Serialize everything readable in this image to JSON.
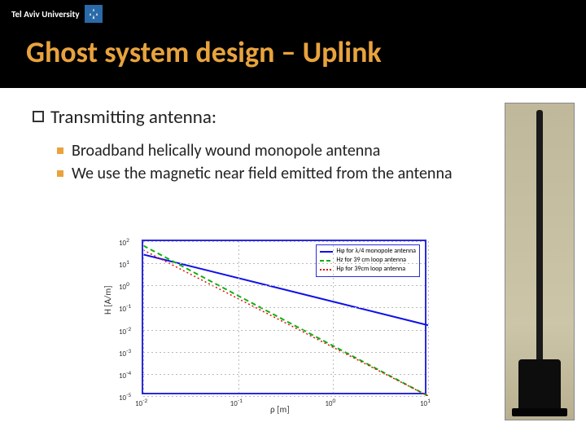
{
  "header": {
    "university": "Tel Aviv University",
    "title": "Ghost system design – Uplink"
  },
  "content": {
    "heading": "Transmitting antenna:",
    "bullets": [
      "Broadband helically wound monopole antenna",
      "We use the magnetic near field emitted from the antenna"
    ]
  },
  "chart": {
    "type": "line",
    "xlabel": "ρ [m]",
    "ylabel": "H [A/m]",
    "xscale": "log",
    "yscale": "log",
    "xticks_exp": [
      -2,
      -1,
      0,
      1
    ],
    "yticks_exp": [
      -5,
      -4,
      -3,
      -2,
      -1,
      0,
      1,
      2
    ],
    "xlim_exp": [
      -2,
      1
    ],
    "ylim_exp": [
      -5,
      2
    ],
    "grid_color": "#bbbbbb",
    "border_color": "#2b2bdc",
    "background_color": "#ffffff",
    "series": [
      {
        "label": "Hφ for λ/4 monopole antenna",
        "color": "#1010e8",
        "dash": "solid",
        "width": 2,
        "x_exp": [
          -2,
          1
        ],
        "y_exp": [
          1.4,
          -1.8
        ]
      },
      {
        "label": "Hz for 39 cm loop antenna",
        "color": "#10b010",
        "dash": "6,4",
        "width": 2,
        "x_exp": [
          -2,
          1
        ],
        "y_exp": [
          1.8,
          -5
        ]
      },
      {
        "label": "Hρ for 39cm loop antenna",
        "color": "#e01010",
        "dash": "2,3",
        "width": 1.5,
        "x_exp": [
          -2,
          1
        ],
        "y_exp": [
          1.6,
          -5
        ]
      }
    ],
    "label_fontsize": 11,
    "tick_fontsize": 9,
    "legend_fontsize": 8
  },
  "photo": {
    "description": "black helical monopole antenna on stand",
    "wall_color": "#c6be9f",
    "antenna_color": "#1a1a1a",
    "base_color": "#0d0d0d"
  }
}
